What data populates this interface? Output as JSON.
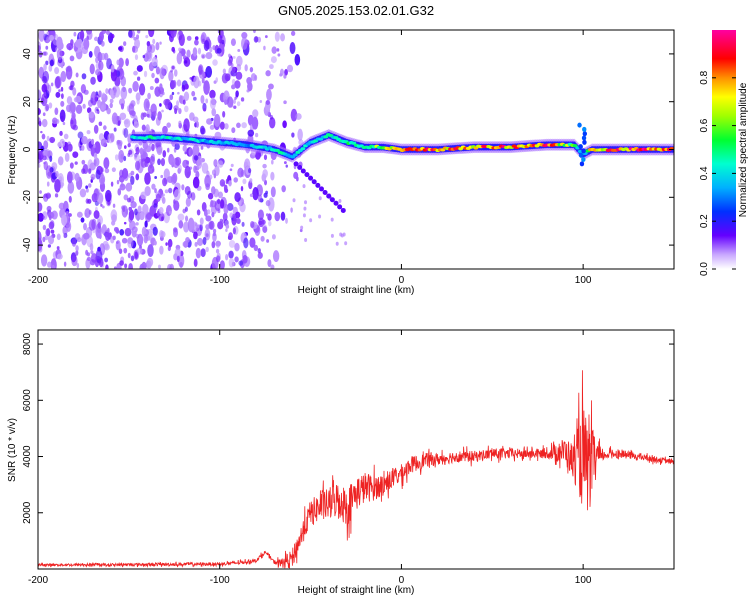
{
  "title": "GN05.2025.153.02.01.G32",
  "chart_data": [
    {
      "type": "heatmap",
      "xlabel": "Height of straight line (km)",
      "ylabel": "Frequency (Hz)",
      "xlim": [
        -200,
        150
      ],
      "ylim": [
        -50,
        50
      ],
      "x_ticks": [
        -200,
        -100,
        0,
        100
      ],
      "y_ticks": [
        -40,
        -20,
        0,
        20,
        40
      ],
      "colorbar": {
        "label": "Normalized spectral amplitude",
        "range": [
          0,
          1
        ],
        "ticks": [
          "0.0",
          "0.2",
          "0.4",
          "0.6",
          "0.8"
        ],
        "colormap": [
          "#e8d8ff",
          "#5a00e0",
          "#0060ff",
          "#00e0ff",
          "#00ff40",
          "#ffff00",
          "#ff8000",
          "#ff0000",
          "#ff00ff"
        ]
      },
      "ridge": [
        {
          "x": -145,
          "y": 5,
          "amp": 0.45
        },
        {
          "x": -130,
          "y": 5,
          "amp": 0.45
        },
        {
          "x": -115,
          "y": 4,
          "amp": 0.4
        },
        {
          "x": -100,
          "y": 3,
          "amp": 0.35
        },
        {
          "x": -85,
          "y": 2,
          "amp": 0.35
        },
        {
          "x": -70,
          "y": 0,
          "amp": 0.45
        },
        {
          "x": -60,
          "y": -3,
          "amp": 0.4
        },
        {
          "x": -50,
          "y": 3,
          "amp": 0.45
        },
        {
          "x": -40,
          "y": 6,
          "amp": 0.45
        },
        {
          "x": -30,
          "y": 3,
          "amp": 0.5
        },
        {
          "x": -20,
          "y": 1,
          "amp": 0.55
        },
        {
          "x": -10,
          "y": 1,
          "amp": 0.65
        },
        {
          "x": 0,
          "y": 0,
          "amp": 0.8
        },
        {
          "x": 20,
          "y": 0,
          "amp": 0.85
        },
        {
          "x": 40,
          "y": 1,
          "amp": 0.8
        },
        {
          "x": 60,
          "y": 1,
          "amp": 0.85
        },
        {
          "x": 80,
          "y": 2,
          "amp": 0.85
        },
        {
          "x": 95,
          "y": 2,
          "amp": 0.55
        },
        {
          "x": 100,
          "y": -2,
          "amp": 0.3
        },
        {
          "x": 105,
          "y": 0,
          "amp": 0.8
        },
        {
          "x": 120,
          "y": 0,
          "amp": 0.85
        },
        {
          "x": 135,
          "y": 0,
          "amp": 0.9
        },
        {
          "x": 150,
          "y": 0,
          "amp": 0.9
        }
      ]
    },
    {
      "type": "line",
      "xlabel": "Height of straight line (km)",
      "ylabel": "SNR (10 * v/v)",
      "xlim": [
        -200,
        150
      ],
      "ylim": [
        0,
        8500
      ],
      "x_ticks": [
        -200,
        -100,
        0,
        100
      ],
      "y_ticks": [
        2000,
        4000,
        6000,
        8000
      ],
      "color": "#ee2222",
      "series": [
        {
          "x": [
            -200,
            -180,
            -160,
            -140,
            -120,
            -100,
            -90,
            -80,
            -75,
            -70,
            -65,
            -60,
            -55,
            -50,
            -45,
            -40,
            -35,
            -30,
            -25,
            -20,
            -15,
            -10,
            -5,
            0,
            5,
            10,
            15,
            20,
            30,
            40,
            50,
            60,
            70,
            80,
            90,
            95,
            100,
            103,
            106,
            110,
            115,
            120,
            130,
            140,
            150
          ],
          "y": [
            150,
            150,
            150,
            160,
            170,
            180,
            220,
            300,
            600,
            250,
            200,
            400,
            1200,
            2000,
            2200,
            2300,
            2500,
            2200,
            2700,
            2900,
            2900,
            3000,
            3200,
            3400,
            3700,
            3800,
            3900,
            3900,
            4000,
            4000,
            4100,
            4100,
            4100,
            4100,
            4200,
            3800,
            4000,
            3400,
            4000,
            4000,
            4100,
            4100,
            4000,
            3900,
            3800
          ]
        }
      ],
      "noise_amplitude": [
        {
          "x": -200,
          "a": 80
        },
        {
          "x": -70,
          "a": 120
        },
        {
          "x": -60,
          "a": 600
        },
        {
          "x": -30,
          "a": 1300
        },
        {
          "x": -10,
          "a": 700
        },
        {
          "x": 20,
          "a": 400
        },
        {
          "x": 80,
          "a": 300
        },
        {
          "x": 95,
          "a": 1200
        },
        {
          "x": 100,
          "a": 3500
        },
        {
          "x": 104,
          "a": 2500
        },
        {
          "x": 110,
          "a": 300
        },
        {
          "x": 150,
          "a": 150
        }
      ]
    }
  ]
}
